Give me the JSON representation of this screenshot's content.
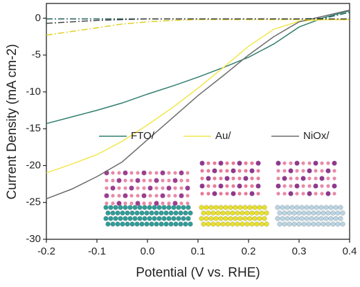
{
  "chart_data": {
    "type": "line",
    "x_label": "Potential (V vs. RHE)",
    "y_label": "Current Density (mA cm-2)",
    "x": [
      -0.2,
      -0.15,
      -0.1,
      -0.05,
      0,
      0.05,
      0.1,
      0.15,
      0.2,
      0.25,
      0.3,
      0.35,
      0.4
    ],
    "series": [
      {
        "name": "FTO/",
        "color": "#2f7d6d",
        "style": "solid",
        "values": [
          -14.3,
          -13.4,
          -12.5,
          -11.5,
          -10.3,
          -9.2,
          -8.0,
          -6.7,
          -5.3,
          -3.5,
          -1.2,
          0.1,
          1.0
        ]
      },
      {
        "name": "Au/",
        "color": "#f2e64a",
        "style": "solid",
        "values": [
          -21,
          -19.8,
          -18.5,
          -16.7,
          -14.5,
          -12.1,
          -9.5,
          -6.7,
          -3.8,
          -1.5,
          -0.4,
          -0.2,
          -0.2
        ]
      },
      {
        "name": "NiOx/",
        "color": "#6b6b6b",
        "style": "solid",
        "values": [
          -24.5,
          -23.2,
          -21.5,
          -19.5,
          -16.5,
          -13.5,
          -10.5,
          -7.8,
          -5.0,
          -2.5,
          -0.5,
          0.3,
          1.1
        ]
      },
      {
        "color": "#1f5f5a",
        "style": "dash-dot",
        "values": [
          -0.1,
          -0.1,
          -0.1,
          -0.1,
          -0.1,
          -0.1,
          -0.1,
          -0.1,
          -0.1,
          -0.1,
          -0.1,
          0.0,
          0.8
        ]
      },
      {
        "color": "#e0cf20",
        "style": "dash-dot",
        "values": [
          -2.3,
          -1.8,
          -1.3,
          -0.8,
          -0.5,
          -0.3,
          -0.2,
          -0.2,
          -0.2,
          -0.2,
          -0.2,
          -0.2,
          -0.2
        ]
      },
      {
        "color": "#444444",
        "style": "dash-dot",
        "values": [
          -0.7,
          -0.5,
          -0.3,
          -0.2,
          -0.1,
          -0.1,
          -0.1,
          -0.1,
          -0.1,
          -0.1,
          -0.1,
          -0.1,
          -0.1
        ]
      }
    ],
    "xlim": [
      -0.2,
      0.4
    ],
    "xticks": [
      -0.2,
      -0.1,
      {
        "value": 0,
        "label": "0.0"
      },
      0.1,
      0.2,
      0.3,
      0.4
    ],
    "ylim": [
      -30,
      2
    ],
    "yticks": [
      0,
      -5,
      -10,
      -15,
      -20,
      -25,
      -30
    ],
    "grid": false
  }
}
